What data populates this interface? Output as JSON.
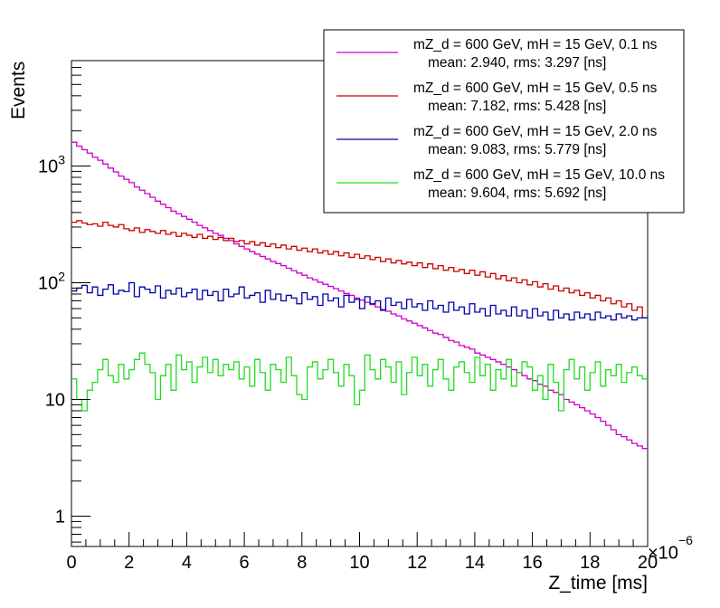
{
  "chart_data": {
    "type": "histogram-step",
    "title": "",
    "xlabel": "Z_time [ms]",
    "ylabel": "Events",
    "x_multiplier": "×10",
    "x_multiplier_exp": "−6",
    "xlim": [
      0,
      20
    ],
    "ylim": [
      0.55,
      8000
    ],
    "y_scale": "log",
    "x_major_ticks": [
      0,
      2,
      4,
      6,
      8,
      10,
      12,
      14,
      16,
      18,
      20
    ],
    "x_tick_labels": [
      "0",
      "2",
      "4",
      "6",
      "8",
      "10",
      "12",
      "14",
      "16",
      "18",
      "20"
    ],
    "y_tick_labels": [
      {
        "value": 1,
        "label": "1"
      },
      {
        "value": 10,
        "label": "10"
      },
      {
        "value": 100,
        "base": "10",
        "exp": "2"
      },
      {
        "value": 1000,
        "base": "10",
        "exp": "3"
      }
    ],
    "legend_position": "top-right",
    "series": [
      {
        "name": "mZ_d = 600 GeV, mH = 15 GeV, 0.1 ns",
        "stats": "mean: 2.940, rms: 3.297 [ns]",
        "color": "#cc00cc",
        "values": [
          1600,
          1480,
          1380,
          1290,
          1190,
          1120,
          1040,
          960,
          890,
          820,
          770,
          720,
          660,
          620,
          580,
          540,
          500,
          470,
          440,
          410,
          390,
          370,
          350,
          330,
          310,
          295,
          280,
          265,
          255,
          240,
          230,
          215,
          205,
          195,
          185,
          176,
          168,
          160,
          152,
          146,
          140,
          133,
          127,
          121,
          116,
          110,
          106,
          101,
          97,
          93,
          89,
          85,
          81,
          78,
          74,
          71,
          68,
          65,
          62,
          59,
          57,
          54,
          52,
          49,
          47,
          45,
          43,
          41,
          39,
          37,
          36,
          34,
          32,
          31,
          29,
          28,
          27,
          25,
          24,
          23,
          22,
          21,
          20,
          19,
          18,
          17,
          16,
          15,
          14.5,
          13.5,
          13,
          12,
          11.5,
          11,
          10,
          9.5,
          9,
          8.5,
          8,
          7.5,
          7,
          6.5,
          6,
          5.5,
          5,
          4.8,
          4.5,
          4.2,
          4,
          3.8
        ]
      },
      {
        "name": "mZ_d = 600 GeV, mH = 15 GeV, 0.5 ns",
        "stats": "mean: 7.182, rms: 5.428 [ns]",
        "color": "#cc0000",
        "values": [
          330,
          340,
          325,
          315,
          320,
          305,
          330,
          310,
          300,
          315,
          290,
          280,
          295,
          270,
          285,
          275,
          265,
          280,
          260,
          270,
          250,
          265,
          255,
          245,
          260,
          240,
          250,
          235,
          245,
          230,
          240,
          225,
          230,
          215,
          225,
          210,
          220,
          205,
          215,
          200,
          210,
          195,
          205,
          190,
          198,
          185,
          195,
          180,
          188,
          175,
          185,
          170,
          180,
          165,
          175,
          162,
          170,
          158,
          165,
          152,
          160,
          148,
          155,
          145,
          150,
          140,
          148,
          135,
          145,
          132,
          140,
          128,
          135,
          125,
          130,
          120,
          128,
          116,
          124,
          112,
          120,
          108,
          115,
          104,
          110,
          100,
          106,
          96,
          102,
          92,
          98,
          88,
          94,
          85,
          90,
          82,
          86,
          78,
          82,
          74,
          78,
          70,
          74,
          66,
          70,
          62,
          66,
          58,
          62,
          50
        ]
      },
      {
        "name": "mZ_d = 600 GeV, mH = 15 GeV, 2.0 ns",
        "stats": "mean: 9.083, rms: 5.779 [ns]",
        "color": "#0000aa",
        "values": [
          85,
          90,
          95,
          82,
          92,
          78,
          88,
          96,
          80,
          86,
          84,
          100,
          76,
          92,
          88,
          82,
          94,
          74,
          86,
          80,
          90,
          76,
          82,
          88,
          72,
          86,
          78,
          84,
          70,
          88,
          76,
          80,
          92,
          74,
          78,
          82,
          68,
          86,
          72,
          80,
          70,
          78,
          74,
          66,
          82,
          72,
          76,
          64,
          80,
          70,
          74,
          62,
          78,
          68,
          72,
          60,
          76,
          66,
          70,
          58,
          74,
          64,
          68,
          60,
          72,
          62,
          66,
          58,
          70,
          60,
          64,
          56,
          68,
          58,
          62,
          54,
          66,
          56,
          60,
          52,
          64,
          54,
          58,
          52,
          62,
          52,
          58,
          50,
          60,
          52,
          56,
          48,
          58,
          50,
          54,
          48,
          56,
          50,
          54,
          48,
          56,
          50,
          52,
          48,
          54,
          50,
          52,
          48,
          50,
          50
        ]
      },
      {
        "name": "mZ_d = 600 GeV, mH = 15 GeV, 10.0 ns",
        "stats": "mean: 9.604, rms: 5.692 [ns]",
        "color": "#22dd22",
        "values": [
          15,
          10,
          8,
          12,
          14,
          18,
          22,
          16,
          14,
          20,
          15,
          18,
          22,
          25,
          20,
          17,
          10,
          16,
          20,
          12,
          24,
          18,
          21,
          14,
          19,
          23,
          17,
          22,
          16,
          20,
          18,
          21,
          15,
          19,
          13,
          22,
          17,
          12,
          20,
          18,
          14,
          23,
          16,
          11,
          10,
          19,
          21,
          15,
          18,
          22,
          17,
          13,
          20,
          16,
          9,
          12,
          24,
          18,
          15,
          22,
          19,
          14,
          21,
          11,
          17,
          23,
          16,
          20,
          13,
          18,
          22,
          15,
          12,
          19,
          21,
          17,
          14,
          23,
          16,
          20,
          12,
          18,
          15,
          22,
          13,
          17,
          21,
          19,
          12,
          16,
          10,
          20,
          14,
          8,
          18,
          22,
          15,
          19,
          12,
          17,
          21,
          13,
          18,
          16,
          20,
          14,
          17,
          19,
          16,
          15
        ]
      }
    ]
  }
}
